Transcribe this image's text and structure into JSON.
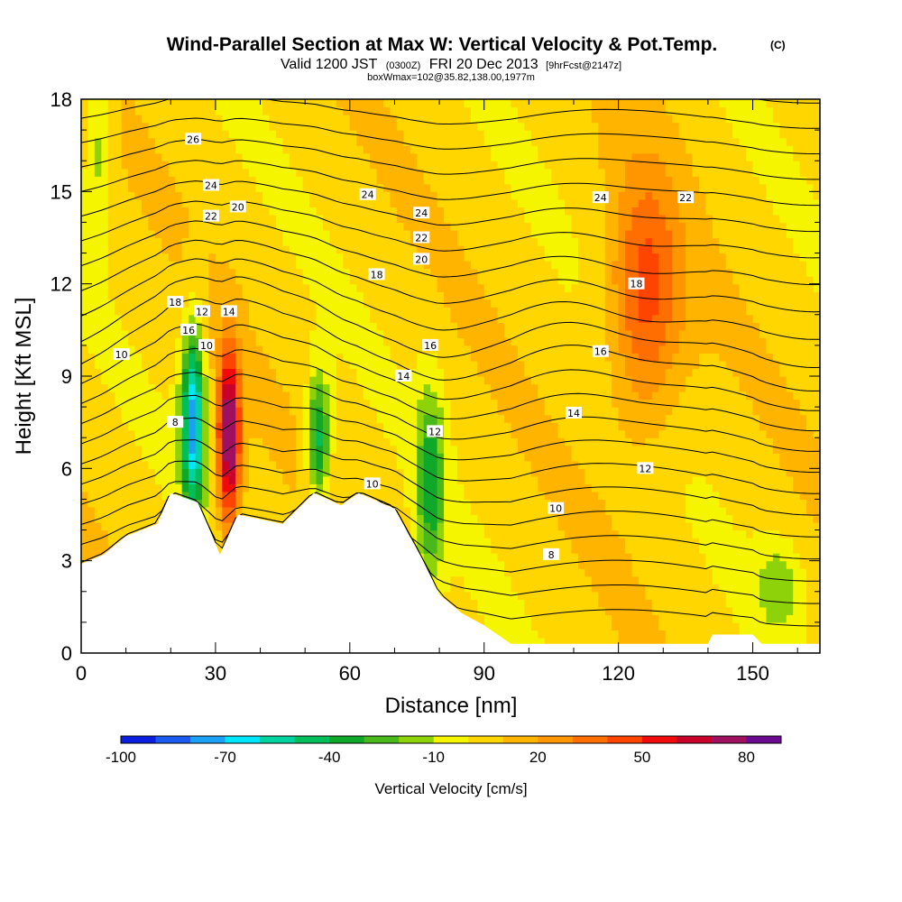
{
  "chart_data": {
    "type": "heatmap",
    "title": "Wind-Parallel Section at Max W: Vertical Velocity & Pot.Temp.",
    "title_mark": "(C)",
    "subtitle_main": "Valid 1200 JST",
    "subtitle_zulu": "(0300Z)",
    "subtitle_date": "FRI 20 Dec 2013",
    "subtitle_fcst": "[9hrFcst@2147z]",
    "subtitle_box": "boxWmax=102@35.82,138.00,1977m",
    "xlabel": "Distance [nm]",
    "ylabel": "Height [Kft MSL]",
    "xlim": [
      0,
      165
    ],
    "ylim": [
      0,
      18
    ],
    "x_ticks": [
      0,
      30,
      60,
      90,
      120,
      150
    ],
    "y_ticks": [
      0,
      3,
      6,
      9,
      12,
      15,
      18
    ],
    "x_tick_labels": [
      "0",
      "30",
      "60",
      "90",
      "120",
      "150"
    ],
    "y_tick_labels": [
      "0",
      "3",
      "6",
      "9",
      "12",
      "15",
      "18"
    ],
    "colorbar": {
      "title": "Vertical Velocity [cm/s]",
      "min": -100,
      "max": 90,
      "step": 10,
      "tick_labels": [
        "-100",
        "-70",
        "-40",
        "-10",
        "20",
        "50",
        "80"
      ],
      "tick_values": [
        -100,
        -70,
        -40,
        -10,
        20,
        50,
        80
      ],
      "colors": [
        "#0a1ee0",
        "#1a5af0",
        "#1aa0f5",
        "#00e6ff",
        "#00d2a0",
        "#00bf5a",
        "#10a82a",
        "#48b81a",
        "#8ed20a",
        "#f5f500",
        "#ffd600",
        "#ffb400",
        "#ff9600",
        "#ff6e00",
        "#ff4400",
        "#f00a0a",
        "#c8002a",
        "#a01060",
        "#6a0a90"
      ]
    },
    "terrain": [
      [
        0,
        2.9
      ],
      [
        5,
        3.2
      ],
      [
        10,
        3.8
      ],
      [
        17,
        4.2
      ],
      [
        20,
        5.2
      ],
      [
        26,
        4.9
      ],
      [
        29,
        3.9
      ],
      [
        31,
        3.2
      ],
      [
        35,
        4.5
      ],
      [
        45,
        4.2
      ],
      [
        52,
        5.2
      ],
      [
        58,
        4.8
      ],
      [
        62,
        5.2
      ],
      [
        70,
        4.7
      ],
      [
        76,
        3.1
      ],
      [
        80,
        1.9
      ],
      [
        85,
        1.3
      ],
      [
        90,
        0.9
      ],
      [
        96,
        0.3
      ],
      [
        110,
        0.3
      ],
      [
        140,
        0.3
      ],
      [
        141,
        0.6
      ],
      [
        150,
        0.6
      ],
      [
        152,
        0.3
      ],
      [
        165,
        0.3
      ]
    ],
    "w_features": [
      {
        "x": 4,
        "y": 16.5,
        "rx": 3,
        "ry": 2.5,
        "w": -20
      },
      {
        "x": 25,
        "y": 7.5,
        "rx": 2.5,
        "ry": 3,
        "w": -80
      },
      {
        "x": 33,
        "y": 7.0,
        "rx": 2.5,
        "ry": 2.8,
        "w": 80
      },
      {
        "x": 53,
        "y": 7.0,
        "rx": 2.5,
        "ry": 2,
        "w": -50
      },
      {
        "x": 78,
        "y": 5.5,
        "rx": 3,
        "ry": 3,
        "w": -40
      },
      {
        "x": 126,
        "y": 11.5,
        "rx": 8,
        "ry": 4,
        "w": 40
      },
      {
        "x": 156,
        "y": 2.2,
        "rx": 5,
        "ry": 1.5,
        "w": -20
      }
    ],
    "contour_labels": [
      "26",
      "24",
      "22",
      "20",
      "18",
      "16",
      "14",
      "12",
      "10",
      "8"
    ]
  }
}
